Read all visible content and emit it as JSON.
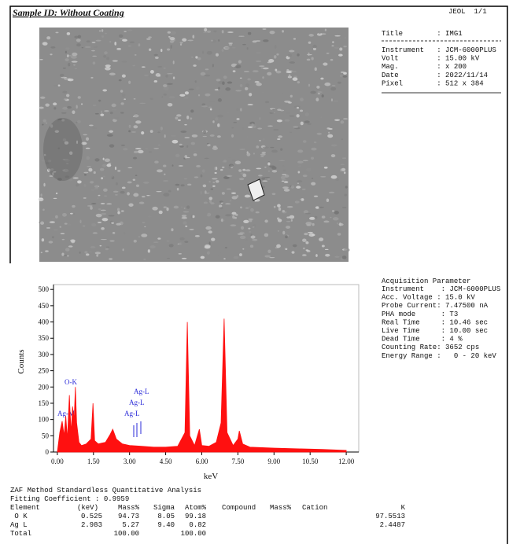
{
  "header": {
    "title": "Sample ID: Without Coating",
    "page": "JEOL  1/1"
  },
  "image_info": {
    "title_line": "Title        : IMG1",
    "lines": [
      "Instrument   : JCM-6000PLUS",
      "Volt         : 15.00 kV",
      "Mag.         : x 200",
      "Date         : 2022/11/14",
      "Pixel        : 512 x 384"
    ]
  },
  "acquisition": {
    "heading": "Acquisition Parameter",
    "lines": [
      "Instrument    : JCM-6000PLUS",
      "Acc. Voltage : 15.0 kV",
      "Probe Current: 7.47500 nA",
      "PHA mode      : T3",
      "Real Time     : 10.46 sec",
      "Live Time     : 10.00 sec",
      "Dead Time     : 4 %",
      "Counting Rate: 3652 cps",
      "Energy Range :   0 - 20 keV"
    ]
  },
  "chart_data": {
    "type": "area",
    "x_label": "keV",
    "y_label": "Counts",
    "color": "#ff1010",
    "annotations": [
      "O-K",
      "Ag-M",
      "Ag-L",
      "Ag-L",
      "Ag-L"
    ],
    "x": [
      0,
      0.1,
      0.2,
      0.28,
      0.35,
      0.42,
      0.5,
      0.53,
      0.58,
      0.63,
      0.7,
      0.75,
      0.8,
      0.9,
      1.0,
      1.2,
      1.4,
      1.48,
      1.55,
      1.7,
      2.0,
      2.2,
      2.3,
      2.45,
      2.7,
      3.0,
      3.5,
      4.0,
      4.5,
      5.0,
      5.3,
      5.4,
      5.5,
      5.7,
      5.9,
      6.0,
      6.3,
      6.6,
      6.8,
      6.93,
      7.05,
      7.3,
      7.5,
      7.56,
      7.7,
      8.0,
      9.0,
      10.0,
      11.0,
      12.0
    ],
    "values": [
      0,
      60,
      95,
      50,
      110,
      40,
      175,
      120,
      60,
      140,
      100,
      200,
      90,
      30,
      20,
      25,
      40,
      150,
      35,
      25,
      30,
      55,
      70,
      40,
      25,
      20,
      18,
      15,
      15,
      18,
      60,
      400,
      50,
      20,
      70,
      20,
      18,
      30,
      90,
      410,
      60,
      20,
      40,
      65,
      25,
      15,
      12,
      10,
      8,
      5
    ],
    "xlim": [
      -0.16,
      12.52
    ],
    "ylim": [
      0,
      515
    ],
    "xticks": [
      {
        "value": 0,
        "label": "0.00"
      },
      {
        "value": 1.5,
        "label": "1.50"
      },
      {
        "value": 3,
        "label": "3.00"
      },
      {
        "value": 4.5,
        "label": "4.50"
      },
      {
        "value": 6,
        "label": "6.00"
      },
      {
        "value": 7.5,
        "label": "7.50"
      },
      {
        "value": 9,
        "label": "9.00"
      },
      {
        "value": 10.5,
        "label": "10.50"
      },
      {
        "value": 12,
        "label": "12.00"
      }
    ],
    "yticks": [
      0,
      50,
      100,
      150,
      200,
      250,
      300,
      350,
      400,
      450,
      500
    ]
  },
  "analysis": {
    "title": "ZAF Method Standardless Quantitative Analysis",
    "fitting": "Fitting Coefficient : 0.9959",
    "columns": [
      "Element",
      "(keV)",
      "Mass%",
      "Sigma",
      "Atom%",
      "Compound",
      "Mass%",
      "Cation",
      "K"
    ],
    "rows": [
      [
        " O K",
        "0.525",
        "94.73",
        "8.05",
        "99.18",
        "",
        "",
        "",
        "97.5513"
      ],
      [
        "Ag L",
        "2.983",
        "5.27",
        "9.40",
        "0.82",
        "",
        "",
        "",
        "2.4487"
      ],
      [
        "Total",
        "",
        "100.00",
        "",
        "100.00",
        "",
        "",
        "",
        ""
      ]
    ]
  }
}
